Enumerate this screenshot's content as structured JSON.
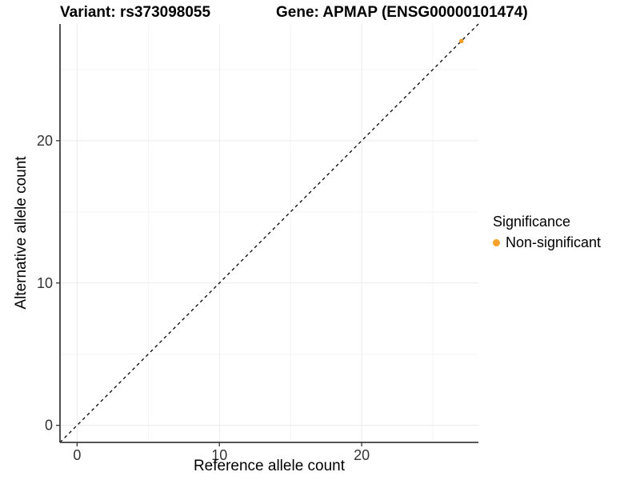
{
  "chart_data": {
    "type": "scatter",
    "title_left": "Variant: rs373098055",
    "title_right": "Gene: APMAP (ENSG00000101474)",
    "xlabel": "Reference allele count",
    "ylabel": "Alternative allele count",
    "xlim": [
      -1.2,
      28.2
    ],
    "ylim": [
      -1.2,
      28.2
    ],
    "xticks": [
      0,
      10,
      20
    ],
    "yticks": [
      0,
      10,
      20
    ],
    "minor_xticks": [
      5,
      15,
      25
    ],
    "minor_yticks": [
      5,
      15,
      25
    ],
    "grid": true,
    "reference_line": {
      "type": "identity y=x",
      "style": "dashed",
      "color": "#000000"
    },
    "series": [
      {
        "name": "Non-significant",
        "color": "#F8A029",
        "points": [
          {
            "x": 27,
            "y": 27
          }
        ]
      }
    ],
    "legend": {
      "title": "Significance",
      "position": "right",
      "items": [
        {
          "label": "Non-significant",
          "color": "#F8A029"
        }
      ]
    },
    "style": {
      "grid_major": "#EBEBEB",
      "grid_minor": "#F5F5F5",
      "axis_line": "#3F3F3F",
      "tick_color": "#333333",
      "background": "#FFFFFF"
    }
  }
}
